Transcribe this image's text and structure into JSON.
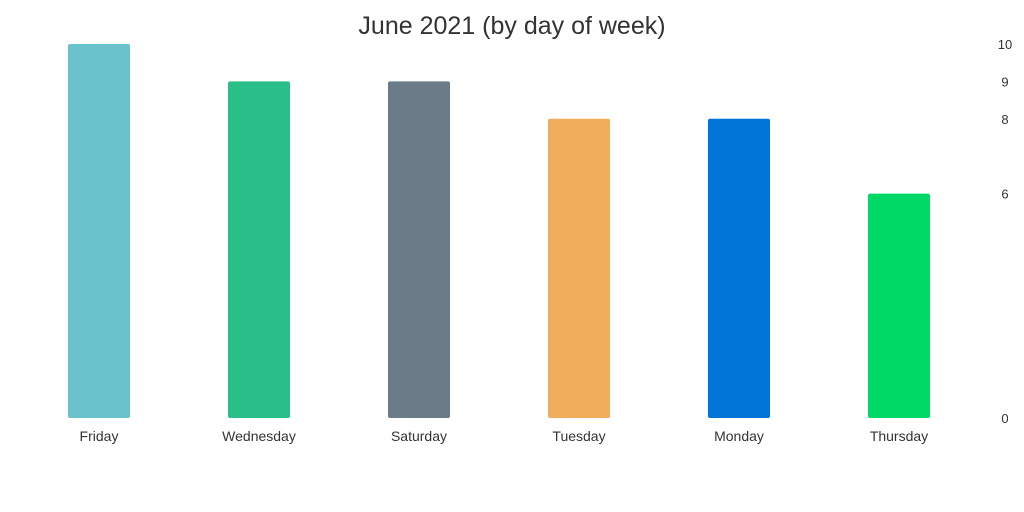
{
  "chart_data": {
    "type": "bar",
    "title": "June 2021 (by day of week)",
    "categories": [
      "Friday",
      "Wednesday",
      "Saturday",
      "Tuesday",
      "Monday",
      "Thursday"
    ],
    "values": [
      10,
      9,
      9,
      8,
      8,
      6
    ],
    "colors": [
      "#6ac3ca",
      "#2abf88",
      "#6b7c88",
      "#f0ad5c",
      "#0075d8",
      "#00d966"
    ],
    "y_ticks": [
      0,
      6,
      8,
      9,
      10
    ],
    "ylim": [
      0,
      10
    ],
    "y_axis_side": "right",
    "grid": false,
    "legend": "none"
  }
}
